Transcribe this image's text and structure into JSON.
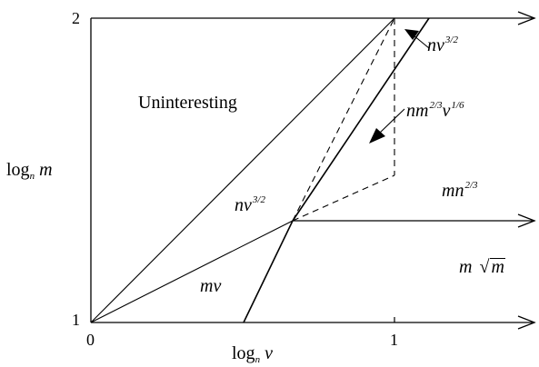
{
  "axes": {
    "x_label_base": "log",
    "x_label_sub": "n",
    "x_label_var": "v",
    "y_label_base": "log",
    "y_label_sub": "n",
    "y_label_var": "m",
    "x_ticks": [
      "0",
      "1"
    ],
    "y_ticks": [
      "1",
      "2"
    ]
  },
  "regions": {
    "uninteresting": "Uninteresting",
    "mv": "mv",
    "mn23_base": "mn",
    "mn23_exp": "2/3",
    "msqrtm_left": "m",
    "msqrtm_inner": "m",
    "nv32_mid_base": "nv",
    "nv32_mid_exp": "3/2",
    "nv32_top_base": "nv",
    "nv32_top_exp": "3/2",
    "nm_base1": "nm",
    "nm_exp1": "2/3",
    "nm_base2": "v",
    "nm_exp2": "1/6"
  },
  "colors": {
    "line": "#000000",
    "background": "#ffffff"
  }
}
